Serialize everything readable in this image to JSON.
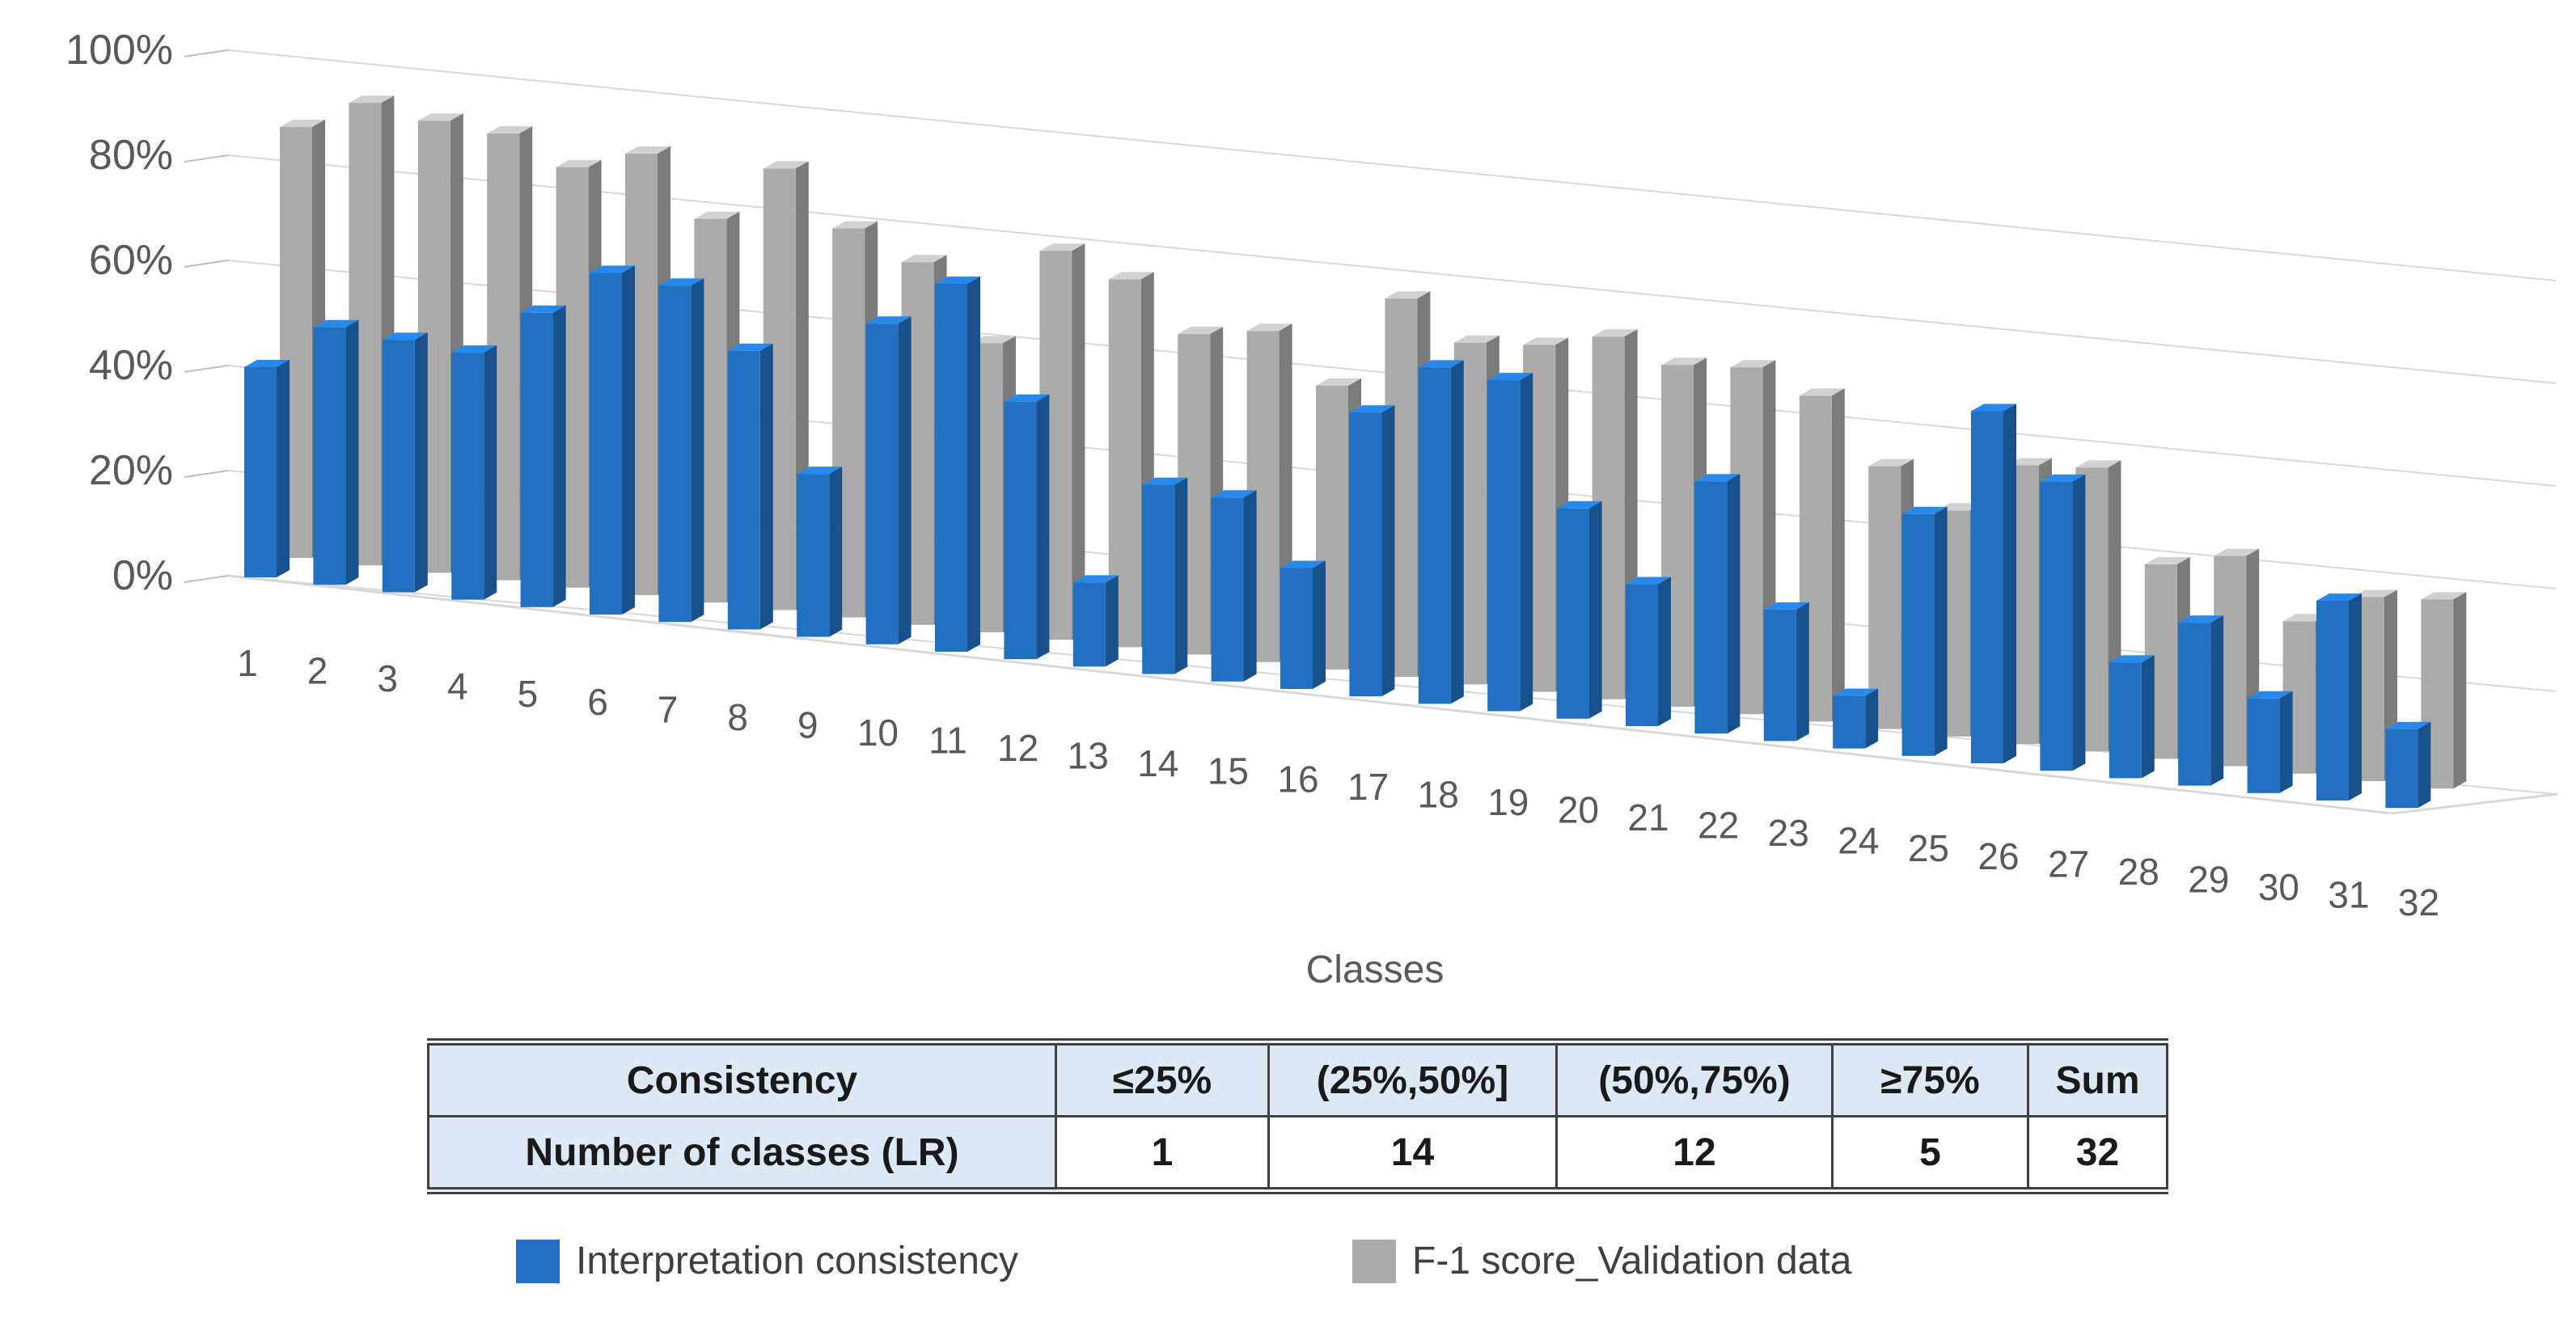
{
  "chart_data": {
    "type": "bar",
    "style": "3d-clustered-column",
    "title": "",
    "xlabel": "Classes",
    "ylabel": "",
    "ylim": [
      0,
      100
    ],
    "grid": true,
    "ytick_labels": [
      "0%",
      "20%",
      "40%",
      "60%",
      "80%",
      "100%"
    ],
    "categories": [
      "1",
      "2",
      "3",
      "4",
      "5",
      "6",
      "7",
      "8",
      "9",
      "10",
      "11",
      "12",
      "13",
      "14",
      "15",
      "16",
      "17",
      "18",
      "19",
      "20",
      "21",
      "22",
      "23",
      "24",
      "25",
      "26",
      "27",
      "28",
      "29",
      "30",
      "31",
      "32"
    ],
    "series": [
      {
        "name": "Interpretation consistency",
        "color": "#2170C2",
        "values": [
          40,
          49,
          48,
          47,
          56,
          65,
          64,
          53,
          31,
          61,
          70,
          49,
          16,
          36,
          35,
          23,
          54,
          64,
          63,
          40,
          27,
          48,
          25,
          10,
          46,
          67,
          55,
          22,
          31,
          18,
          38,
          15
        ]
      },
      {
        "name": "F-1 score_Validation data",
        "color": "#ABABAB",
        "values": [
          82,
          88,
          86,
          85,
          80,
          84,
          73,
          84,
          74,
          69,
          55,
          74,
          70,
          61,
          63,
          54,
          72,
          65,
          66,
          69,
          65,
          66,
          62,
          50,
          43,
          53,
          54,
          37,
          40,
          29,
          35,
          36
        ]
      }
    ],
    "legend_position": "bottom"
  },
  "table": {
    "header_row": [
      "Consistency",
      "≤25%",
      "(25%,50%]",
      "(50%,75%)",
      "≥75%",
      "Sum"
    ],
    "data_row": [
      "Number of classes (LR)",
      "1",
      "14",
      "12",
      "5",
      "32"
    ]
  },
  "legend": {
    "items": [
      {
        "label": "Interpretation consistency",
        "color": "#2170C2"
      },
      {
        "label": "F-1 score_Validation data",
        "color": "#ABABAB"
      }
    ]
  }
}
